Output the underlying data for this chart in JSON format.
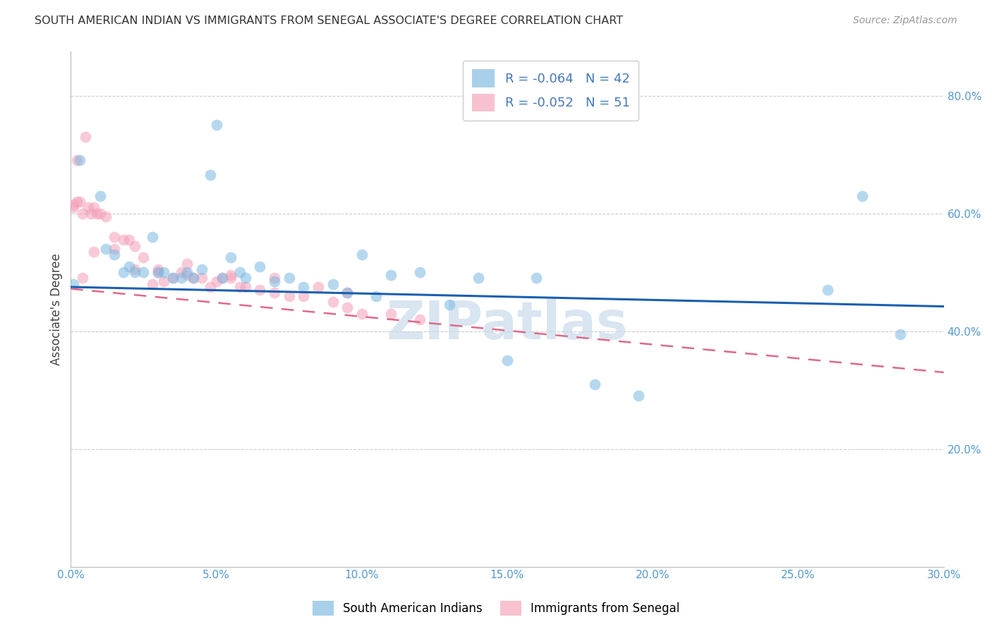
{
  "title": "SOUTH AMERICAN INDIAN VS IMMIGRANTS FROM SENEGAL ASSOCIATE'S DEGREE CORRELATION CHART",
  "source": "Source: ZipAtlas.com",
  "ylabel": "Associate's Degree",
  "xlim": [
    0.0,
    0.3
  ],
  "ylim": [
    0.0,
    0.875
  ],
  "xtick_labels": [
    "0.0%",
    "5.0%",
    "10.0%",
    "15.0%",
    "20.0%",
    "25.0%",
    "30.0%"
  ],
  "xtick_values": [
    0.0,
    0.05,
    0.1,
    0.15,
    0.2,
    0.25,
    0.3
  ],
  "ytick_labels_right": [
    "20.0%",
    "40.0%",
    "60.0%",
    "80.0%"
  ],
  "ytick_values_right": [
    0.2,
    0.4,
    0.6,
    0.8
  ],
  "legend_entries": [
    {
      "label": "R = -0.064   N = 42",
      "color": "#a8c8e8"
    },
    {
      "label": "R = -0.052   N = 51",
      "color": "#f4b8c8"
    }
  ],
  "legend_labels_bottom": [
    "South American Indians",
    "Immigrants from Senegal"
  ],
  "blue_color": "#7ab8e0",
  "pink_color": "#f4a0b8",
  "blue_line_color": "#1a5faf",
  "pink_line_color": "#e06888",
  "watermark": "ZIPatlas",
  "watermark_color": "#c5d8ea",
  "blue_line_x0": 0.0,
  "blue_line_y0": 0.475,
  "blue_line_x1": 0.3,
  "blue_line_y1": 0.442,
  "pink_line_x0": 0.0,
  "pink_line_y0": 0.472,
  "pink_line_x1": 0.3,
  "pink_line_y1": 0.33,
  "blue_scatter_x": [
    0.001,
    0.003,
    0.01,
    0.012,
    0.015,
    0.018,
    0.02,
    0.022,
    0.025,
    0.028,
    0.03,
    0.032,
    0.035,
    0.038,
    0.04,
    0.042,
    0.045,
    0.048,
    0.05,
    0.052,
    0.055,
    0.058,
    0.06,
    0.065,
    0.07,
    0.075,
    0.08,
    0.09,
    0.095,
    0.1,
    0.105,
    0.11,
    0.12,
    0.13,
    0.14,
    0.15,
    0.16,
    0.18,
    0.195,
    0.26,
    0.272,
    0.285
  ],
  "blue_scatter_y": [
    0.48,
    0.69,
    0.63,
    0.54,
    0.53,
    0.5,
    0.51,
    0.5,
    0.5,
    0.56,
    0.5,
    0.5,
    0.49,
    0.49,
    0.5,
    0.49,
    0.505,
    0.665,
    0.75,
    0.49,
    0.525,
    0.5,
    0.49,
    0.51,
    0.485,
    0.49,
    0.475,
    0.48,
    0.465,
    0.53,
    0.46,
    0.495,
    0.5,
    0.445,
    0.49,
    0.35,
    0.49,
    0.31,
    0.29,
    0.47,
    0.63,
    0.395
  ],
  "pink_scatter_x": [
    0.001,
    0.001,
    0.002,
    0.003,
    0.004,
    0.005,
    0.006,
    0.007,
    0.008,
    0.009,
    0.01,
    0.012,
    0.015,
    0.018,
    0.02,
    0.022,
    0.025,
    0.028,
    0.03,
    0.032,
    0.035,
    0.038,
    0.04,
    0.042,
    0.045,
    0.048,
    0.05,
    0.052,
    0.055,
    0.058,
    0.06,
    0.065,
    0.07,
    0.075,
    0.08,
    0.09,
    0.095,
    0.1,
    0.11,
    0.12,
    0.002,
    0.004,
    0.008,
    0.015,
    0.022,
    0.03,
    0.04,
    0.055,
    0.07,
    0.085,
    0.095
  ],
  "pink_scatter_y": [
    0.61,
    0.615,
    0.62,
    0.62,
    0.6,
    0.73,
    0.61,
    0.6,
    0.61,
    0.6,
    0.6,
    0.595,
    0.56,
    0.555,
    0.555,
    0.505,
    0.525,
    0.48,
    0.505,
    0.485,
    0.49,
    0.5,
    0.515,
    0.49,
    0.49,
    0.475,
    0.485,
    0.49,
    0.49,
    0.475,
    0.475,
    0.47,
    0.465,
    0.46,
    0.46,
    0.45,
    0.44,
    0.43,
    0.43,
    0.42,
    0.69,
    0.49,
    0.535,
    0.54,
    0.545,
    0.5,
    0.495,
    0.495,
    0.49,
    0.475,
    0.465
  ]
}
